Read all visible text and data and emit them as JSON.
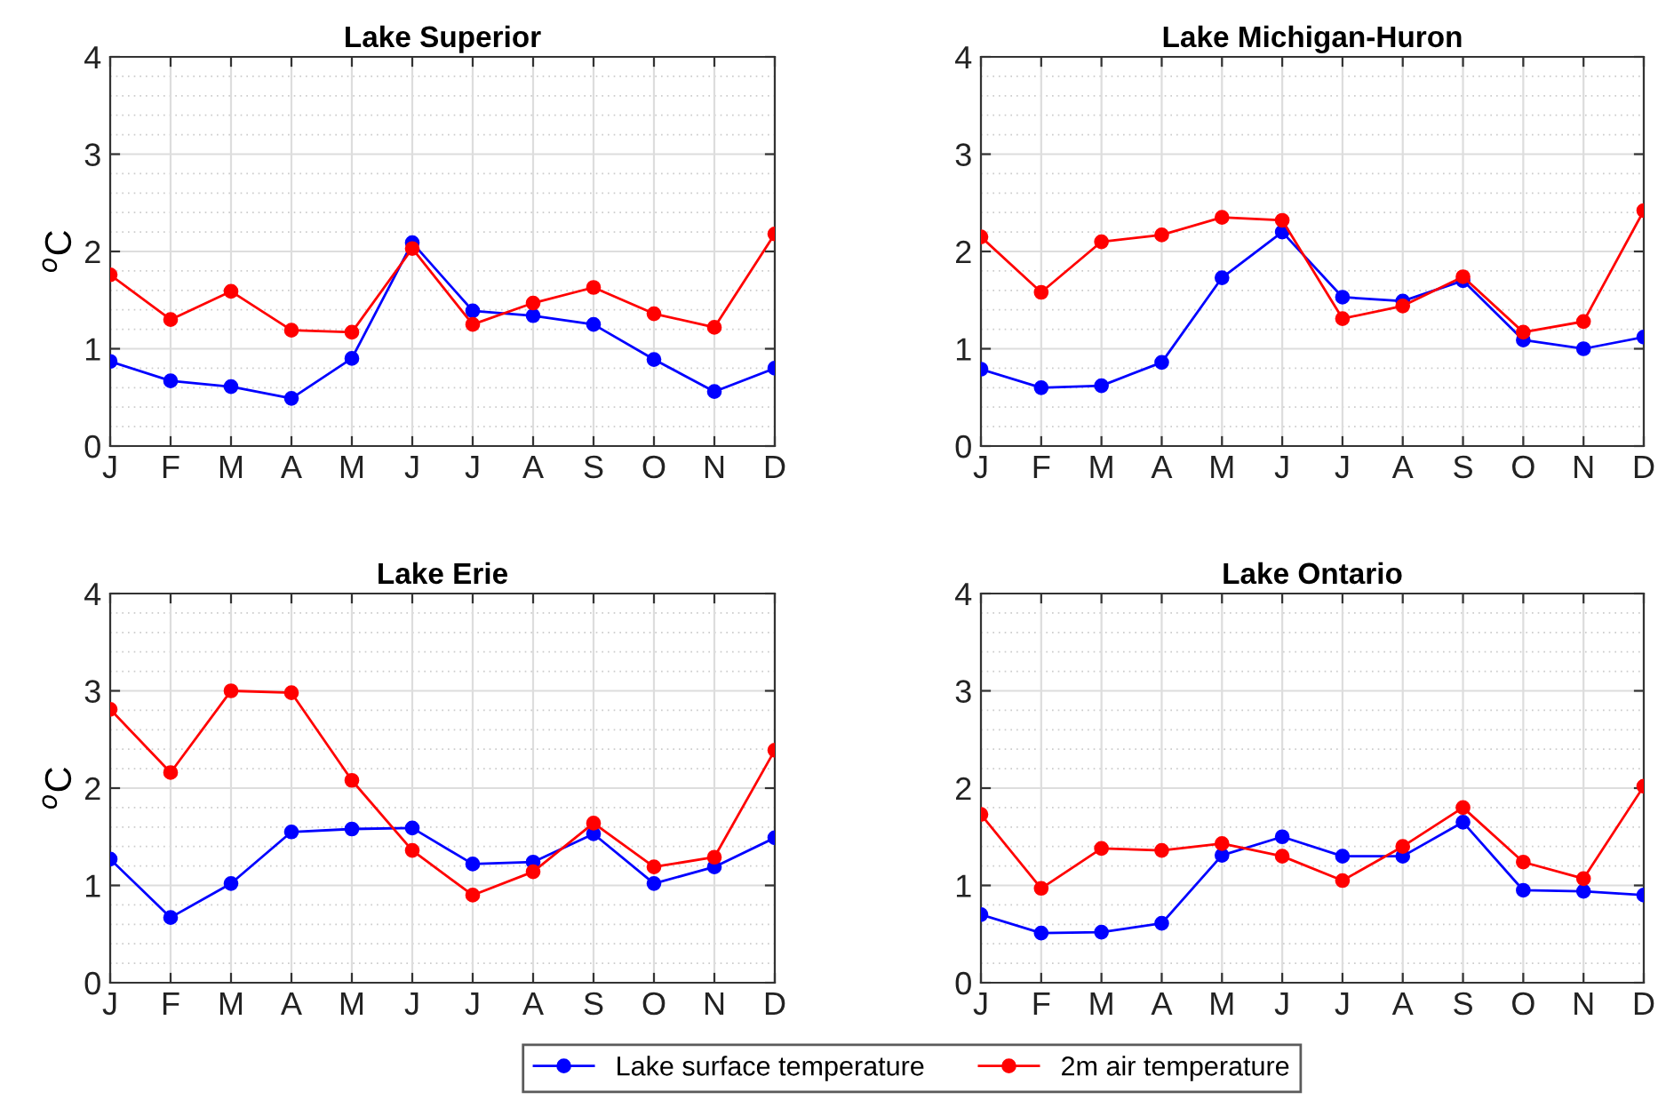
{
  "chart_data": [
    {
      "type": "line",
      "title": "Lake Superior",
      "ylabel": "$^{o}$C",
      "categories": [
        "J",
        "F",
        "M",
        "A",
        "M",
        "J",
        "J",
        "A",
        "S",
        "O",
        "N",
        "D"
      ],
      "ylim": [
        0,
        4
      ],
      "yticks": [
        0,
        1,
        2,
        3,
        4
      ],
      "grid": true,
      "marker": "circle",
      "line_style": "solid",
      "legend": "bottom",
      "series": [
        {
          "name": "Lake surface temperature",
          "color": "#0000ff",
          "values": [
            0.87,
            0.67,
            0.61,
            0.49,
            0.9,
            2.09,
            1.39,
            1.34,
            1.25,
            0.89,
            0.56,
            0.8
          ]
        },
        {
          "name": "2m air temperature",
          "color": "#ff0000",
          "values": [
            1.76,
            1.3,
            1.59,
            1.19,
            1.17,
            2.03,
            1.25,
            1.47,
            1.63,
            1.36,
            1.22,
            2.18
          ]
        }
      ]
    },
    {
      "type": "line",
      "title": "Lake Michigan-Huron",
      "categories": [
        "J",
        "F",
        "M",
        "A",
        "M",
        "J",
        "J",
        "A",
        "S",
        "O",
        "N",
        "D"
      ],
      "ylim": [
        0,
        4
      ],
      "yticks": [
        0,
        1,
        2,
        3,
        4
      ],
      "grid": true,
      "marker": "circle",
      "line_style": "solid",
      "series": [
        {
          "color": "#0000ff",
          "values": [
            0.79,
            0.6,
            0.62,
            0.86,
            1.73,
            2.2,
            1.53,
            1.49,
            1.7,
            1.09,
            1.0,
            1.12
          ]
        },
        {
          "color": "#ff0000",
          "values": [
            2.15,
            1.58,
            2.1,
            2.17,
            2.35,
            2.32,
            1.31,
            1.44,
            1.74,
            1.17,
            1.28,
            2.42
          ]
        }
      ]
    },
    {
      "type": "line",
      "title": "Lake Erie",
      "ylabel": "$^{o}$C",
      "categories": [
        "J",
        "F",
        "M",
        "A",
        "M",
        "J",
        "J",
        "A",
        "S",
        "O",
        "N",
        "D"
      ],
      "ylim": [
        0,
        4
      ],
      "yticks": [
        0,
        1,
        2,
        3,
        4
      ],
      "grid": true,
      "marker": "circle",
      "line_style": "solid",
      "series": [
        {
          "color": "#0000ff",
          "values": [
            1.27,
            0.67,
            1.02,
            1.55,
            1.58,
            1.59,
            1.22,
            1.24,
            1.53,
            1.02,
            1.19,
            1.49
          ]
        },
        {
          "color": "#ff0000",
          "values": [
            2.81,
            2.16,
            3.0,
            2.98,
            2.08,
            1.36,
            0.9,
            1.14,
            1.64,
            1.19,
            1.29,
            2.39
          ]
        }
      ]
    },
    {
      "type": "line",
      "title": "Lake Ontario",
      "categories": [
        "J",
        "F",
        "M",
        "A",
        "M",
        "J",
        "J",
        "A",
        "S",
        "O",
        "N",
        "D"
      ],
      "ylim": [
        0,
        4
      ],
      "yticks": [
        0,
        1,
        2,
        3,
        4
      ],
      "grid": true,
      "marker": "circle",
      "line_style": "solid",
      "series": [
        {
          "color": "#0000ff",
          "values": [
            0.7,
            0.51,
            0.52,
            0.61,
            1.31,
            1.5,
            1.3,
            1.3,
            1.65,
            0.95,
            0.94,
            0.9
          ]
        },
        {
          "color": "#ff0000",
          "values": [
            1.73,
            0.97,
            1.38,
            1.36,
            1.43,
            1.3,
            1.05,
            1.4,
            1.8,
            1.24,
            1.07,
            2.02
          ]
        }
      ]
    }
  ]
}
